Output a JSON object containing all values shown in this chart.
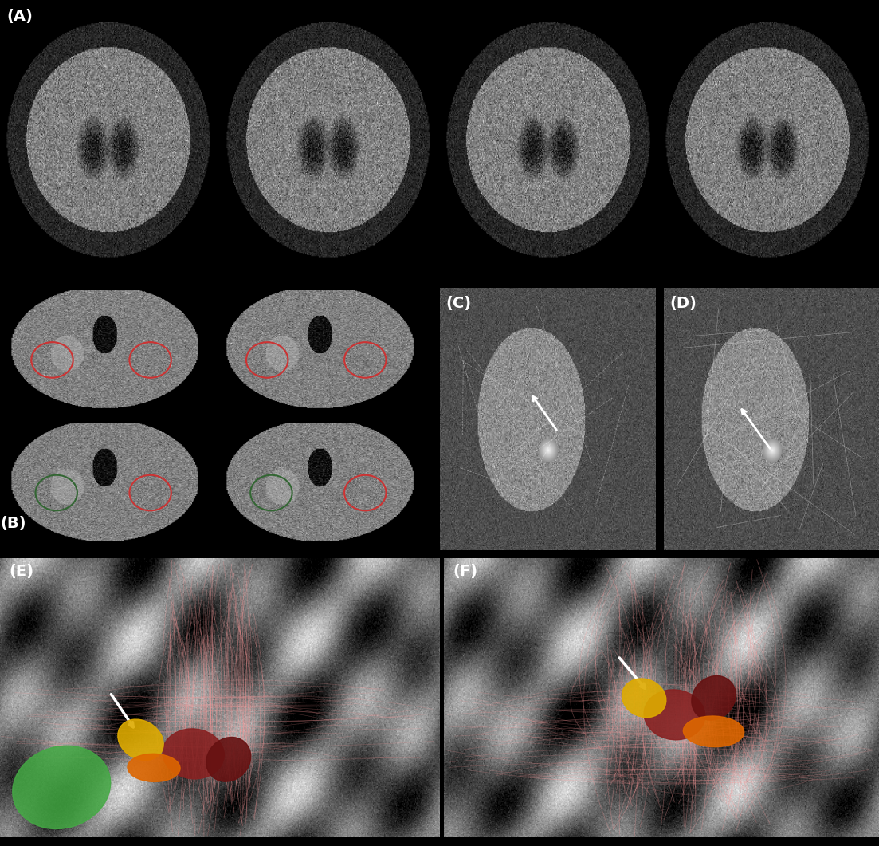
{
  "panel_labels": [
    "(A)",
    "(B)",
    "(C)",
    "(D)",
    "(E)",
    "(F)"
  ],
  "panel_label_color": "white",
  "panel_label_fontsize": 14,
  "panel_label_fontweight": "bold",
  "background_color": "black",
  "fig_width": 11.03,
  "fig_height": 10.61,
  "dpi": 100,
  "border_color": "black",
  "border_linewidth": 2,
  "ocd_ellipse_color": "#cc3333",
  "dystonia_ellipse_color": "#336633",
  "green_structure_color": "#44aa44",
  "yellow_structure_color": "#ddaa00",
  "orange_structure_color": "#dd6600",
  "red_structure_color": "#882222",
  "dark_red_structure_color": "#661111",
  "tract_color": "#ff9999",
  "arrow_color": "white"
}
